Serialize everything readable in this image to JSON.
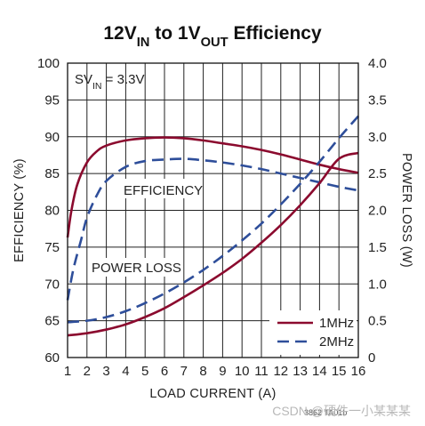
{
  "chart_data": {
    "type": "line",
    "title_parts": [
      {
        "text": "12V",
        "sub": false
      },
      {
        "text": "IN",
        "sub": true
      },
      {
        "text": " to 1V",
        "sub": false
      },
      {
        "text": "OUT",
        "sub": true
      },
      {
        "text": " Efficiency",
        "sub": false
      }
    ],
    "xlabel": "LOAD CURRENT (A)",
    "ylabel": "EFFICIENCY (%)",
    "y2label": "POWER LOSS (W)",
    "xlim": [
      1,
      16
    ],
    "ylim": [
      60,
      100
    ],
    "y2lim": [
      0,
      4
    ],
    "x_ticks": [
      "1",
      "2",
      "3",
      "4",
      "5",
      "6",
      "7",
      "8",
      "9",
      "10",
      "11",
      "12",
      "13",
      "14",
      "15",
      "16"
    ],
    "y_ticks": [
      "60",
      "65",
      "70",
      "75",
      "80",
      "85",
      "90",
      "95",
      "100"
    ],
    "y2_ticks": [
      "0",
      "0.5",
      "1.0",
      "1.5",
      "2.0",
      "2.5",
      "3.0",
      "3.5",
      "4.0"
    ],
    "grid": true,
    "annotation_parts": [
      {
        "text": "SV",
        "sub": false
      },
      {
        "text": "IN",
        "sub": true
      },
      {
        "text": " = 3.3V",
        "sub": false
      }
    ],
    "label_efficiency": "EFFICIENCY",
    "label_power_loss": "POWER LOSS",
    "legend_position": "bottom-right",
    "series": [
      {
        "name": "1MHz",
        "metric": "efficiency",
        "axis": "left",
        "color": "#8b0a2e",
        "dash": false,
        "x": [
          1,
          1.2,
          1.5,
          2,
          2.5,
          3,
          4,
          5,
          6,
          7,
          8,
          9,
          10,
          11,
          12,
          13,
          14,
          15,
          16
        ],
        "y": [
          76.3,
          80,
          83.5,
          86.5,
          88,
          88.8,
          89.5,
          89.8,
          89.9,
          89.8,
          89.5,
          89.1,
          88.7,
          88.2,
          87.6,
          86.9,
          86.2,
          85.6,
          85.1
        ]
      },
      {
        "name": "2MHz",
        "metric": "efficiency",
        "axis": "left",
        "color": "#2e4e9a",
        "dash": true,
        "x": [
          1,
          1.3,
          1.7,
          2,
          2.5,
          3,
          4,
          5,
          6,
          7,
          8,
          9,
          10,
          11,
          12,
          13,
          14,
          15,
          16
        ],
        "y": [
          67.8,
          72,
          76,
          79,
          82,
          84,
          85.9,
          86.7,
          86.9,
          87,
          86.8,
          86.5,
          86.1,
          85.6,
          85,
          84.4,
          83.8,
          83.2,
          82.7
        ]
      },
      {
        "name": "1MHz",
        "metric": "power_loss",
        "axis": "right",
        "color": "#8b0a2e",
        "dash": false,
        "x": [
          1,
          2,
          3,
          4,
          5,
          6,
          7,
          8,
          9,
          10,
          11,
          12,
          13,
          14,
          15,
          16
        ],
        "y": [
          0.3,
          0.33,
          0.38,
          0.45,
          0.55,
          0.67,
          0.82,
          0.98,
          1.15,
          1.34,
          1.56,
          1.8,
          2.07,
          2.37,
          2.7,
          2.78
        ]
      },
      {
        "name": "2MHz",
        "metric": "power_loss",
        "axis": "right",
        "color": "#2e4e9a",
        "dash": true,
        "x": [
          1,
          2,
          3,
          4,
          5,
          6,
          7,
          8,
          9,
          10,
          11,
          12,
          13,
          14,
          15,
          16
        ],
        "y": [
          0.48,
          0.5,
          0.55,
          0.63,
          0.74,
          0.87,
          1.02,
          1.19,
          1.38,
          1.59,
          1.82,
          2.08,
          2.36,
          2.66,
          2.98,
          3.28
        ]
      }
    ],
    "legend": [
      {
        "name": "1MHz",
        "color": "#8b0a2e",
        "dash": false
      },
      {
        "name": "2MHz",
        "color": "#2e4e9a",
        "dash": true
      }
    ],
    "figure_code": "3862 TA01b",
    "watermark": "CSDN @硬件一小某某某"
  }
}
